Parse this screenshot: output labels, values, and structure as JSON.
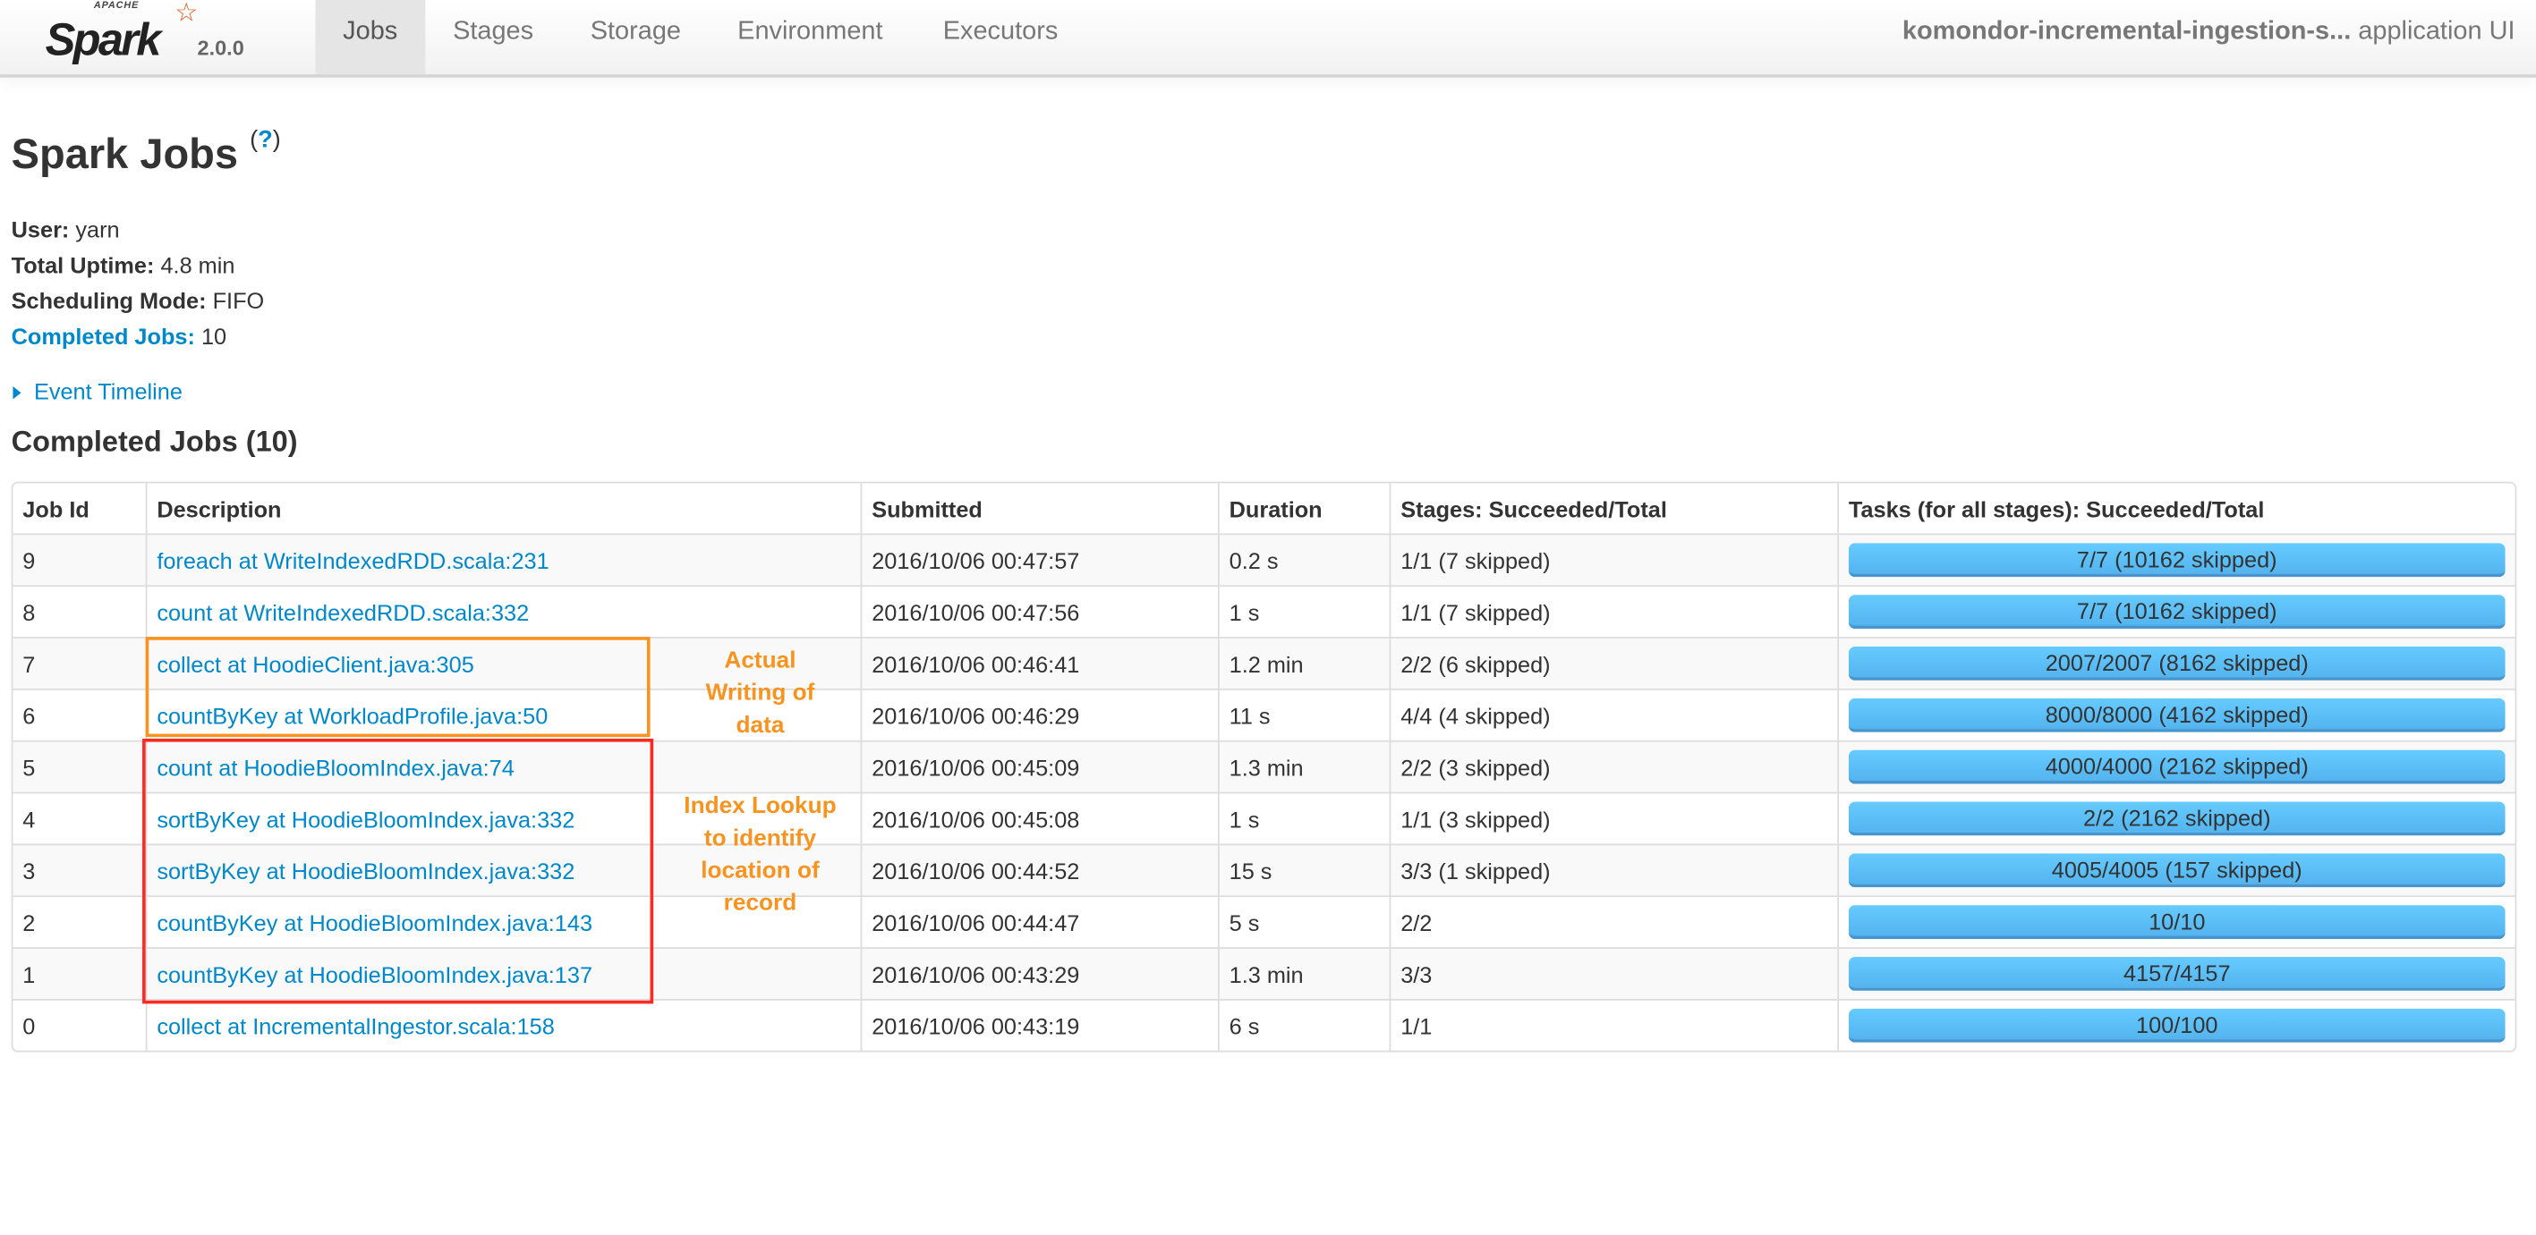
{
  "nav": {
    "logo_text": "Spark",
    "logo_sub": "APACHE",
    "version": "2.0.0",
    "tabs": [
      {
        "label": "Jobs",
        "active": true
      },
      {
        "label": "Stages",
        "active": false
      },
      {
        "label": "Storage",
        "active": false
      },
      {
        "label": "Environment",
        "active": false
      },
      {
        "label": "Executors",
        "active": false
      }
    ],
    "app_name": "komondor-incremental-ingestion-s...",
    "app_suffix": "application UI"
  },
  "page": {
    "title": "Spark Jobs",
    "help": "?",
    "user_label": "User:",
    "user": "yarn",
    "uptime_label": "Total Uptime:",
    "uptime": "4.8 min",
    "mode_label": "Scheduling Mode:",
    "mode": "FIFO",
    "completed_label": "Completed Jobs:",
    "completed": "10",
    "event_timeline": "Event Timeline",
    "section_title": "Completed Jobs (10)"
  },
  "table": {
    "headers": [
      "Job Id",
      "Description",
      "Submitted",
      "Duration",
      "Stages: Succeeded/Total",
      "Tasks (for all stages): Succeeded/Total"
    ],
    "rows": [
      {
        "id": "9",
        "desc": "foreach at WriteIndexedRDD.scala:231",
        "submitted": "2016/10/06 00:47:57",
        "duration": "0.2 s",
        "stages": "1/1 (7 skipped)",
        "tasks": "7/7 (10162 skipped)",
        "progress": 1.0
      },
      {
        "id": "8",
        "desc": "count at WriteIndexedRDD.scala:332",
        "submitted": "2016/10/06 00:47:56",
        "duration": "1 s",
        "stages": "1/1 (7 skipped)",
        "tasks": "7/7 (10162 skipped)",
        "progress": 1.0
      },
      {
        "id": "7",
        "desc": "collect at HoodieClient.java:305",
        "submitted": "2016/10/06 00:46:41",
        "duration": "1.2 min",
        "stages": "2/2 (6 skipped)",
        "tasks": "2007/2007 (8162 skipped)",
        "progress": 1.0
      },
      {
        "id": "6",
        "desc": "countByKey at WorkloadProfile.java:50",
        "submitted": "2016/10/06 00:46:29",
        "duration": "11 s",
        "stages": "4/4 (4 skipped)",
        "tasks": "8000/8000 (4162 skipped)",
        "progress": 1.0
      },
      {
        "id": "5",
        "desc": "count at HoodieBloomIndex.java:74",
        "submitted": "2016/10/06 00:45:09",
        "duration": "1.3 min",
        "stages": "2/2 (3 skipped)",
        "tasks": "4000/4000 (2162 skipped)",
        "progress": 1.0
      },
      {
        "id": "4",
        "desc": "sortByKey at HoodieBloomIndex.java:332",
        "submitted": "2016/10/06 00:45:08",
        "duration": "1 s",
        "stages": "1/1 (3 skipped)",
        "tasks": "2/2 (2162 skipped)",
        "progress": 1.0
      },
      {
        "id": "3",
        "desc": "sortByKey at HoodieBloomIndex.java:332",
        "submitted": "2016/10/06 00:44:52",
        "duration": "15 s",
        "stages": "3/3 (1 skipped)",
        "tasks": "4005/4005 (157 skipped)",
        "progress": 1.0
      },
      {
        "id": "2",
        "desc": "countByKey at HoodieBloomIndex.java:143",
        "submitted": "2016/10/06 00:44:47",
        "duration": "5 s",
        "stages": "2/2",
        "tasks": "10/10",
        "progress": 1.0
      },
      {
        "id": "1",
        "desc": "countByKey at HoodieBloomIndex.java:137",
        "submitted": "2016/10/06 00:43:29",
        "duration": "1.3 min",
        "stages": "3/3",
        "tasks": "4157/4157",
        "progress": 1.0
      },
      {
        "id": "0",
        "desc": "collect at IncrementalIngestor.scala:158",
        "submitted": "2016/10/06 00:43:19",
        "duration": "6 s",
        "stages": "1/1",
        "tasks": "100/100",
        "progress": 1.0
      }
    ]
  },
  "annotations": {
    "writing": [
      "Actual",
      "Writing of",
      "data"
    ],
    "lookup": [
      "Index Lookup",
      "to identify",
      "location of",
      "record"
    ]
  },
  "colors": {
    "link": "#0088cc",
    "orange_box": "#f7931e",
    "red_box": "#ff2a1f",
    "bar": "#5bbdf5"
  }
}
